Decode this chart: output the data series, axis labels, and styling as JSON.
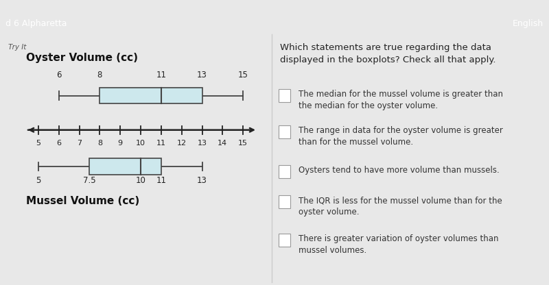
{
  "header_bg": "#2b3990",
  "header_left": "d 6 Alpharetta",
  "header_right": "English",
  "sub_header": "Try It",
  "bg_color": "#e8e8e8",
  "content_bg": "#f2f2f2",
  "oyster": {
    "min": 6,
    "q1": 8,
    "median": 11,
    "q3": 13,
    "max": 15,
    "label": "Oyster Volume (cc)"
  },
  "mussel": {
    "min": 5,
    "q1": 7.5,
    "median": 10,
    "q3": 11,
    "max": 13,
    "label": "Mussel Volume (cc)"
  },
  "axis_min": 5,
  "axis_max": 15,
  "axis_ticks": [
    5,
    6,
    7,
    8,
    9,
    10,
    11,
    12,
    13,
    14,
    15
  ],
  "box_color": "#cde8ed",
  "box_edge_color": "#444444",
  "whisker_color": "#444444",
  "question_title": "Which statements are true regarding the data\ndisplayed in the boxplots? Check all that apply.",
  "statements": [
    "The median for the mussel volume is greater than\nthe median for the oyster volume.",
    "The range in data for the oyster volume is greater\nthan for the mussel volume.",
    "Oysters tend to have more volume than mussels.",
    "The IQR is less for the mussel volume than for the\noyster volume.",
    "There is greater variation of oyster volumes than\nmussel volumes."
  ],
  "title_fontsize": 9.5,
  "statement_fontsize": 8.5,
  "label_fontsize": 11
}
